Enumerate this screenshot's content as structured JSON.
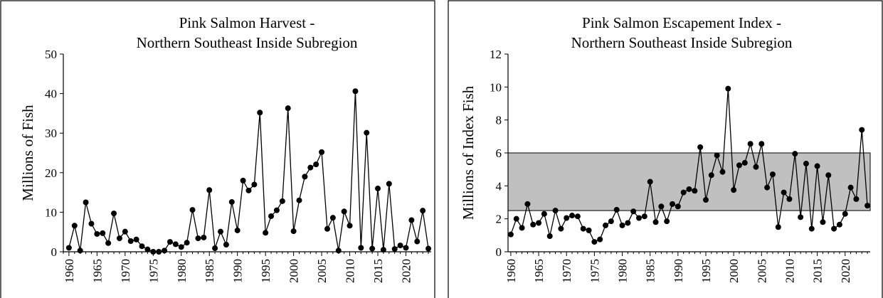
{
  "chart_data": [
    {
      "type": "line",
      "title": [
        "Pink Salmon Harvest -",
        "Northern Southeast Inside Subregion"
      ],
      "xlabel": "",
      "ylabel": "Millions of Fish",
      "xlim": [
        1959,
        2024.5
      ],
      "ylim": [
        0,
        50
      ],
      "yticks": [
        "0",
        "10",
        "20",
        "30",
        "40",
        "50"
      ],
      "xticks": [
        "1960",
        "1965",
        "1970",
        "1975",
        "1980",
        "1985",
        "1990",
        "1995",
        "2000",
        "2005",
        "2010",
        "2015",
        "2020"
      ],
      "grid": false,
      "legend": "none",
      "series_color": "#000000",
      "x": [
        1960,
        1961,
        1962,
        1963,
        1964,
        1965,
        1966,
        1967,
        1968,
        1969,
        1970,
        1971,
        1972,
        1973,
        1974,
        1975,
        1976,
        1977,
        1978,
        1979,
        1980,
        1981,
        1982,
        1983,
        1984,
        1985,
        1986,
        1987,
        1988,
        1989,
        1990,
        1991,
        1992,
        1993,
        1994,
        1995,
        1996,
        1997,
        1998,
        1999,
        2000,
        2001,
        2002,
        2003,
        2004,
        2005,
        2006,
        2007,
        2008,
        2009,
        2010,
        2011,
        2012,
        2013,
        2014,
        2015,
        2016,
        2017,
        2018,
        2019,
        2020,
        2021,
        2022,
        2023,
        2024
      ],
      "values": [
        1.0,
        6.6,
        0.3,
        12.5,
        7.1,
        4.5,
        4.7,
        2.2,
        9.7,
        3.4,
        5.1,
        2.7,
        3.1,
        1.4,
        0.6,
        0.0,
        0.0,
        0.3,
        2.5,
        1.9,
        1.2,
        2.3,
        10.6,
        3.4,
        3.6,
        15.6,
        0.9,
        5.1,
        1.8,
        12.6,
        5.4,
        18.0,
        15.5,
        17.0,
        35.2,
        4.8,
        9.0,
        10.5,
        12.8,
        36.3,
        5.2,
        13.0,
        19.0,
        21.3,
        22.1,
        25.2,
        5.8,
        8.6,
        0.3,
        10.2,
        6.6,
        40.6,
        1.0,
        30.1,
        0.8,
        16.0,
        0.5,
        17.2,
        0.7,
        1.6,
        1.0,
        8.0,
        2.6,
        10.4,
        0.8
      ]
    },
    {
      "type": "line",
      "title": [
        "Pink Salmon Escapement Index -",
        "Northern Southeast Inside Subregion"
      ],
      "xlabel": "",
      "ylabel": "Millions of Index Fish",
      "xlim": [
        1959.5,
        2024.5
      ],
      "ylim": [
        0,
        12
      ],
      "yticks": [
        "0",
        "2",
        "4",
        "6",
        "8",
        "10",
        "12"
      ],
      "xticks": [
        "1960",
        "1965",
        "1970",
        "1975",
        "1980",
        "1985",
        "1990",
        "1995",
        "2000",
        "2005",
        "2010",
        "2015",
        "2020"
      ],
      "grid": false,
      "legend": "none",
      "series_color": "#000000",
      "target_band": {
        "low": 2.5,
        "high": 6.0,
        "color": "#c0c0c0"
      },
      "x": [
        1960,
        1961,
        1962,
        1963,
        1964,
        1965,
        1966,
        1967,
        1968,
        1969,
        1970,
        1971,
        1972,
        1973,
        1974,
        1975,
        1976,
        1977,
        1978,
        1979,
        1980,
        1981,
        1982,
        1983,
        1984,
        1985,
        1986,
        1987,
        1988,
        1989,
        1990,
        1991,
        1992,
        1993,
        1994,
        1995,
        1996,
        1997,
        1998,
        1999,
        2000,
        2001,
        2002,
        2003,
        2004,
        2005,
        2006,
        2007,
        2008,
        2009,
        2010,
        2011,
        2012,
        2013,
        2014,
        2015,
        2016,
        2017,
        2018,
        2019,
        2020,
        2021,
        2022,
        2023,
        2024
      ],
      "values": [
        1.05,
        2.0,
        1.45,
        2.9,
        1.65,
        1.75,
        2.3,
        0.95,
        2.5,
        1.4,
        2.05,
        2.2,
        2.15,
        1.4,
        1.3,
        0.6,
        0.75,
        1.6,
        1.85,
        2.55,
        1.6,
        1.75,
        2.45,
        2.05,
        2.15,
        4.25,
        1.8,
        2.75,
        1.85,
        2.9,
        2.75,
        3.6,
        3.8,
        3.7,
        6.35,
        3.15,
        4.65,
        5.85,
        4.85,
        9.9,
        3.75,
        5.25,
        5.4,
        6.55,
        5.15,
        6.55,
        3.9,
        4.7,
        1.5,
        3.6,
        3.2,
        5.95,
        2.1,
        5.35,
        1.4,
        5.2,
        1.8,
        4.65,
        1.4,
        1.65,
        2.3,
        3.9,
        3.2,
        7.4,
        2.8
      ]
    }
  ]
}
